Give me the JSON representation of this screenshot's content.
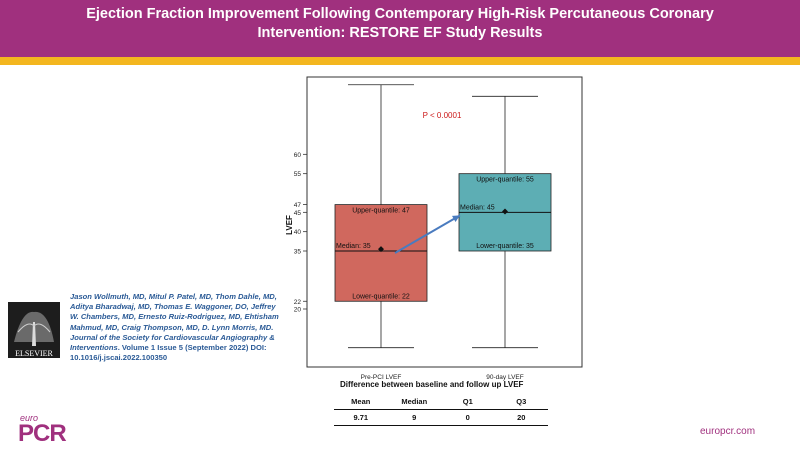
{
  "header": {
    "title": "Ejection Fraction Improvement Following Contemporary High-Risk Percutaneous Coronary Intervention: RESTORE EF Study Results"
  },
  "chart_data": {
    "type": "box",
    "ylabel": "LVEF",
    "categories": [
      "Pre-PCI LVEF",
      "90-day LVEF"
    ],
    "ylim": [
      5,
      80
    ],
    "yticks": [
      20,
      22,
      35,
      40,
      45,
      47,
      55,
      60
    ],
    "boxes": [
      {
        "name": "Pre-PCI LVEF",
        "whisker_low": 10,
        "q1": 22,
        "median": 35,
        "q3": 47,
        "whisker_high": 78,
        "mean": 35.5,
        "color": "#d0685e",
        "labels": {
          "upper": "Upper-quantile: 47",
          "median": "Median: 35",
          "lower": "Lower-quantile: 22"
        }
      },
      {
        "name": "90-day LVEF",
        "whisker_low": 10,
        "q1": 35,
        "median": 45,
        "q3": 55,
        "whisker_high": 75,
        "mean": 45.2,
        "color": "#5daeb4",
        "labels": {
          "upper": "Upper-quantile: 55",
          "median": "Median: 45",
          "lower": "Lower-quantile: 35"
        }
      }
    ],
    "annotation": "P < 0.0001",
    "annotation_color": "#cc1a1a",
    "arrow_color": "#4a7bbf"
  },
  "citation": {
    "authors": "Jason Wollmuth, MD, Mitul P. Patel, MD, Thom Dahle, MD, Aditya Bharadwaj, MD, Thomas E. Waggoner, DO, Jeffrey W. Chambers, MD, Ernesto Ruiz-Rodriguez, MD, Ehtisham Mahmud, MD, Craig Thompson, MD, D. Lynn Morris, MD.",
    "journal": "Journal of the Society for Cardiovascular Angiography & Interventions",
    "volume": ". Volume 1 Issue 5 (September 2022)",
    "doi": " DOI: 10.1016/j.jscai.2022.100350"
  },
  "logo_text": "ELSEVIER",
  "difference_table": {
    "title": "Difference between baseline and follow up LVEF",
    "headers": [
      "Mean",
      "Median",
      "Q1",
      "Q3"
    ],
    "values": [
      "9.71",
      "9",
      "0",
      "20"
    ]
  },
  "footer": {
    "brand_small": "euro",
    "brand_large": "PCR",
    "site": "europcr.com"
  }
}
